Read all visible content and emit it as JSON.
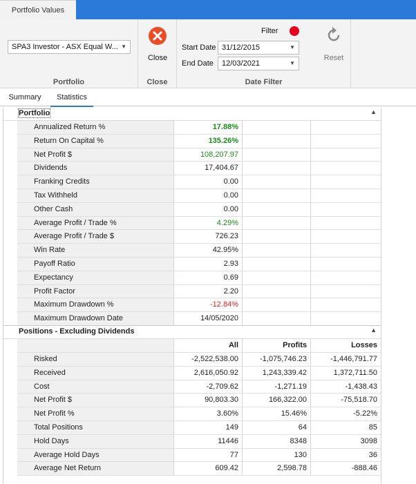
{
  "document_tab": "Portfolio Values",
  "ribbon": {
    "portfolio_combo": "SPA3 Investor - ASX Equal W...",
    "portfolio_group": "Portfolio",
    "close_label": "Close",
    "close_group": "Close",
    "filter_label": "Filter",
    "start_date_label": "Start Date",
    "start_date": "31/12/2015",
    "end_date_label": "End Date",
    "end_date": "12/03/2021",
    "date_filter_group": "Date Filter",
    "reset_label": "Reset"
  },
  "tabs": [
    {
      "label": "Summary"
    },
    {
      "label": "Statistics"
    }
  ],
  "portfolio_section": {
    "title": "Portfolio",
    "rows": [
      {
        "label": "Annualized Return %",
        "value": "17.88%"
      },
      {
        "label": "Return On Capital %",
        "value": "135.26%"
      },
      {
        "label": "Net Profit $",
        "value": "108,207.97"
      },
      {
        "label": "Dividends",
        "value": "17,404.67"
      },
      {
        "label": "Franking Credits",
        "value": "0.00"
      },
      {
        "label": "Tax Withheld",
        "value": "0.00"
      },
      {
        "label": "Other Cash",
        "value": "0.00"
      },
      {
        "label": "Average Profit / Trade %",
        "value": "4.29%"
      },
      {
        "label": "Average Profit / Trade $",
        "value": "726.23"
      },
      {
        "label": "Win Rate",
        "value": "42.95%"
      },
      {
        "label": "Payoff Ratio",
        "value": "2.93"
      },
      {
        "label": "Expectancy",
        "value": "0.69"
      },
      {
        "label": "Profit Factor",
        "value": "2.20"
      },
      {
        "label": "Maximum Drawdown %",
        "value": "-12.84%"
      },
      {
        "label": "Maximum Drawdown Date",
        "value": "14/05/2020"
      }
    ]
  },
  "positions_section": {
    "title": "Positions - Excluding Dividends",
    "columns": [
      "All",
      "Profits",
      "Losses"
    ],
    "rows": [
      {
        "label": "Risked",
        "all": "-2,522,538.00",
        "profits": "-1,075,746.23",
        "losses": "-1,446,791.77"
      },
      {
        "label": "Received",
        "all": "2,616,050.92",
        "profits": "1,243,339.42",
        "losses": "1,372,711.50"
      },
      {
        "label": "Cost",
        "all": "-2,709.62",
        "profits": "-1,271.19",
        "losses": "-1,438.43"
      },
      {
        "label": "Net Profit $",
        "all": "90,803.30",
        "profits": "166,322.00",
        "losses": "-75,518.70"
      },
      {
        "label": "Net Profit %",
        "all": "3.60%",
        "profits": "15.46%",
        "losses": "-5.22%"
      },
      {
        "label": "Total Positions",
        "all": "149",
        "profits": "64",
        "losses": "85"
      },
      {
        "label": "Hold Days",
        "all": "11446",
        "profits": "8348",
        "losses": "3098"
      },
      {
        "label": "Average Hold Days",
        "all": "77",
        "profits": "130",
        "losses": "36"
      },
      {
        "label": "Average Net Return",
        "all": "609.42",
        "profits": "2,598.78",
        "losses": "-888.46"
      }
    ]
  },
  "colors": {
    "accent": "#2b79d8",
    "positive": "#1a8a1a",
    "negative": "#e02020",
    "close_icon": "#e94e28",
    "filter_dot": "#e8001c"
  }
}
